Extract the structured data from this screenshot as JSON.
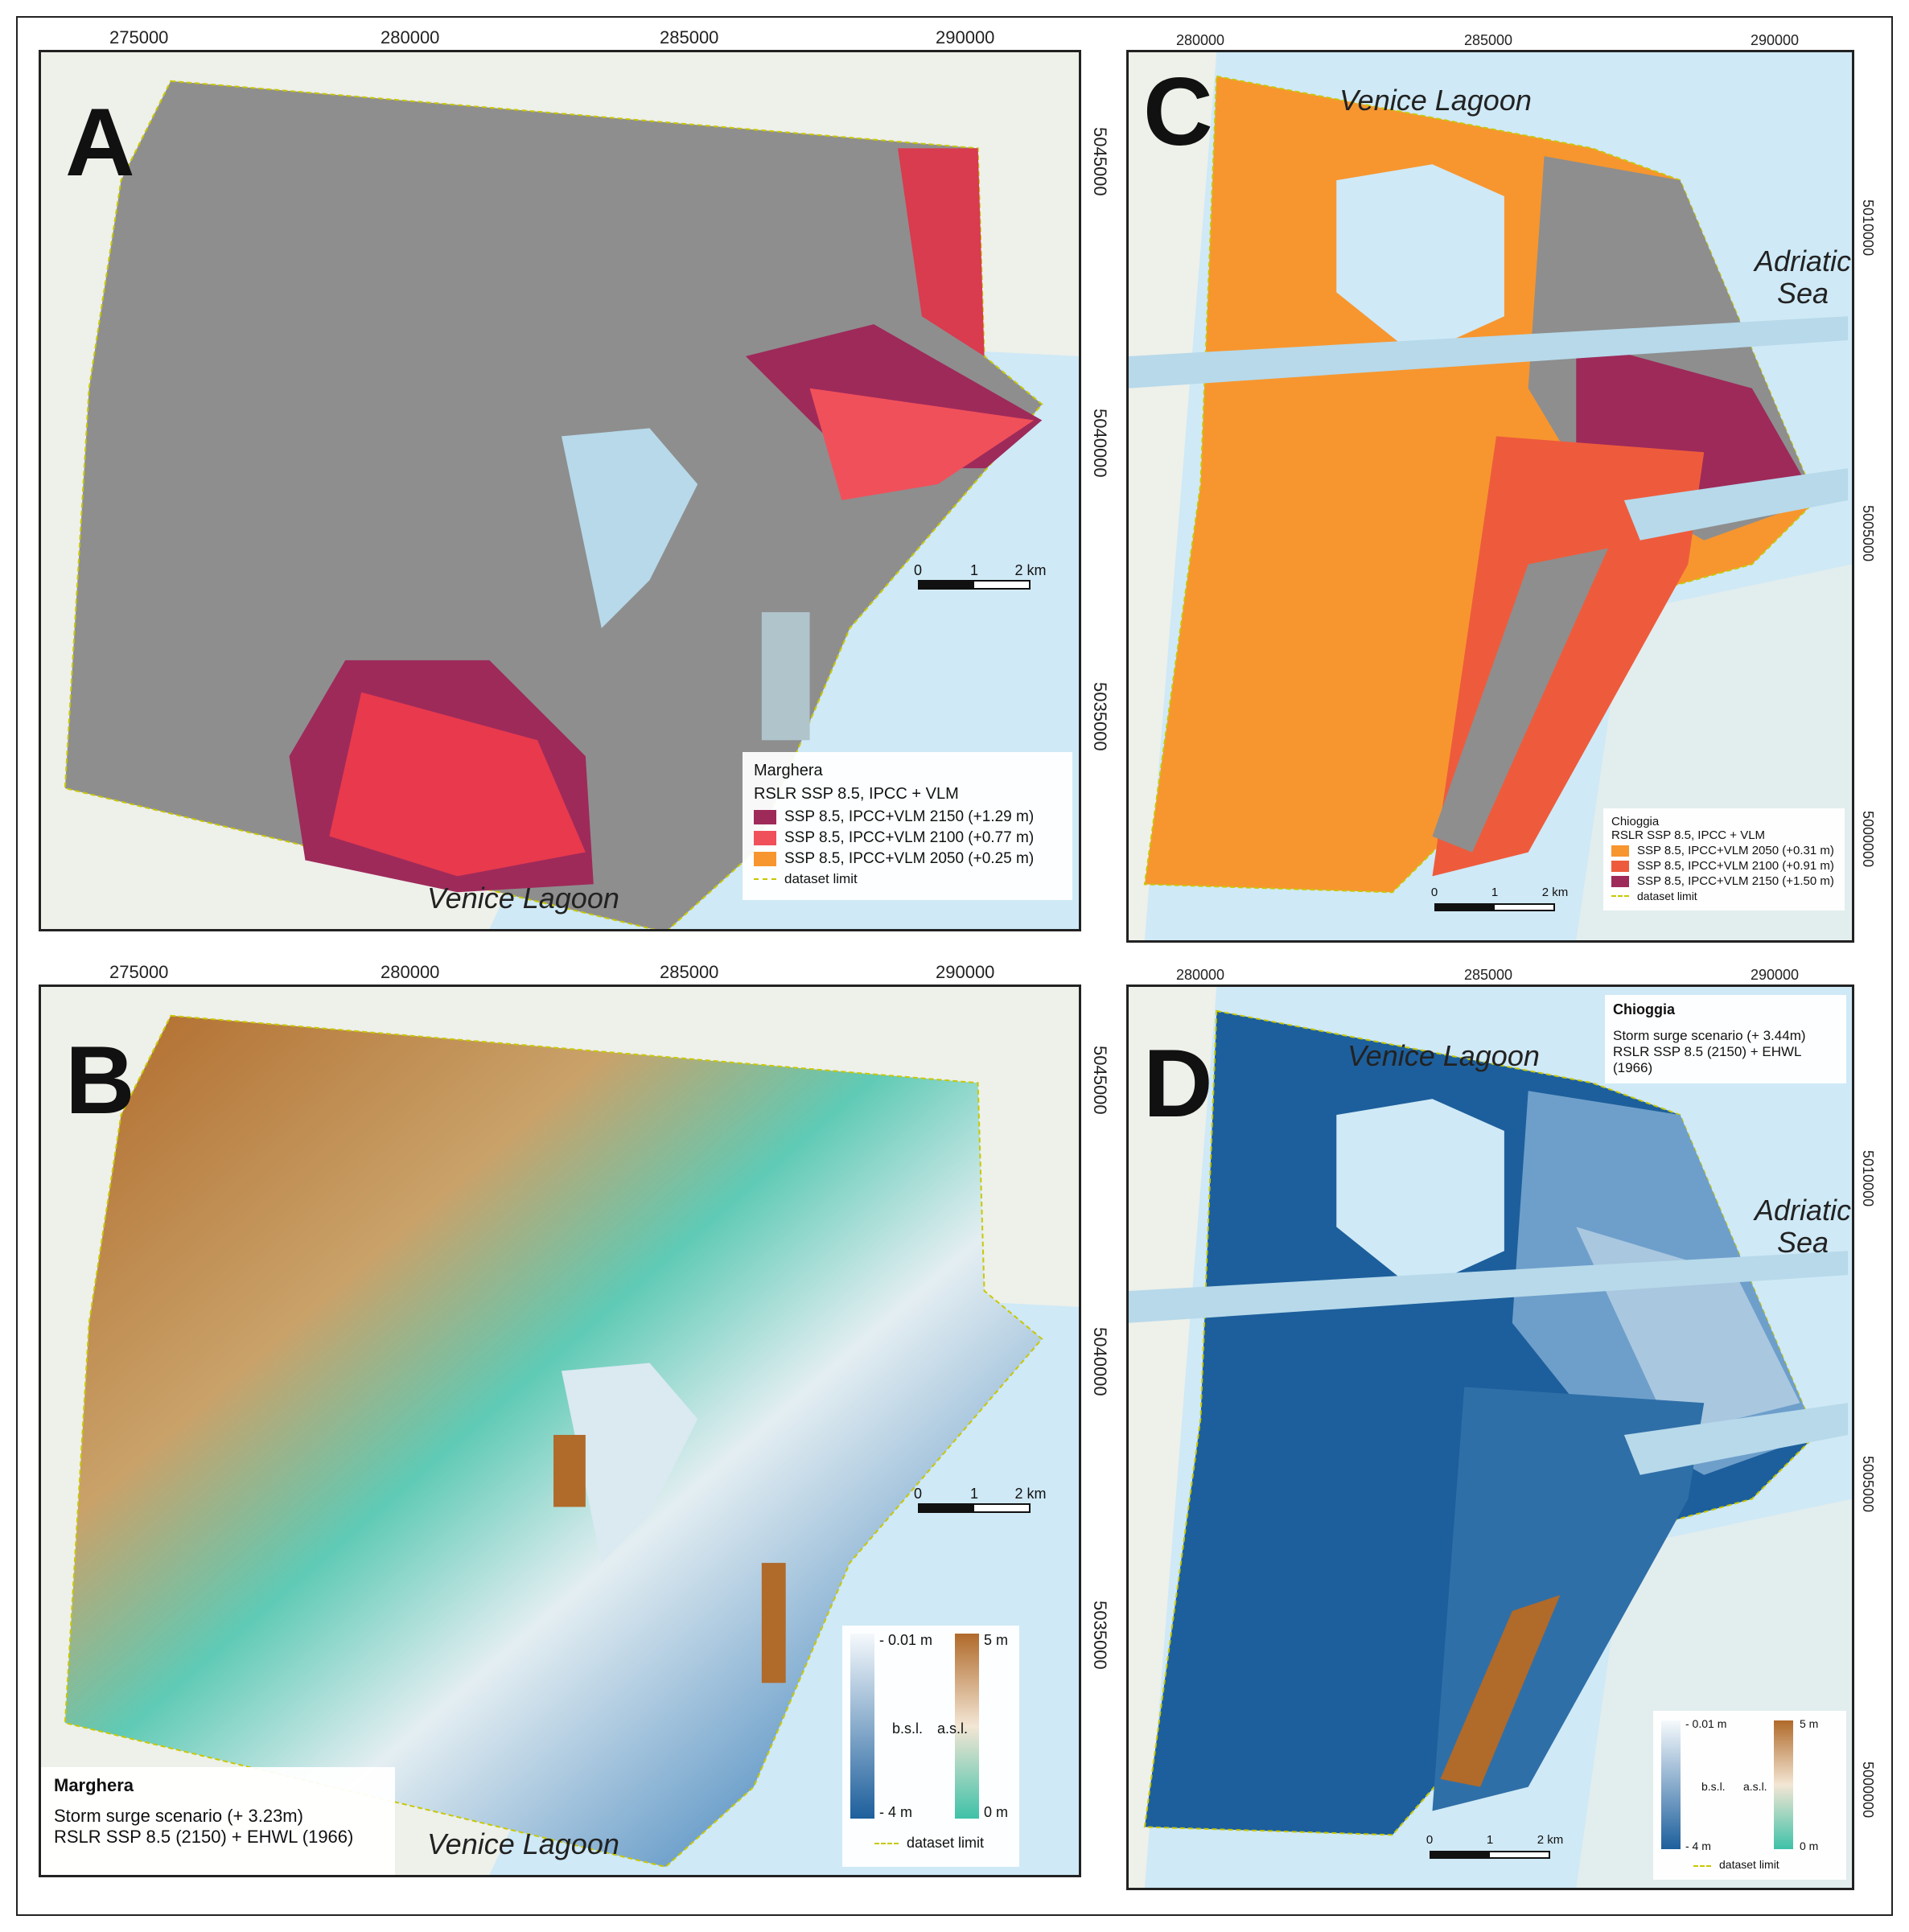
{
  "panels": {
    "A": {
      "letter": "A",
      "top_ticks": [
        "275000",
        "280000",
        "285000",
        "290000"
      ],
      "right_ticks": [
        "5045000",
        "5040000",
        "5035000"
      ],
      "places": {
        "lagoon": "Venice Lagoon"
      },
      "scale": {
        "n0": "0",
        "n1": "1",
        "n2": "2 km"
      },
      "legend": {
        "title": "Marghera",
        "subtitle": "RSLR SSP 8.5, IPCC + VLM",
        "items": [
          {
            "label": "SSP 8.5, IPCC+VLM 2150 (+1.29 m)",
            "color": "#9e2a5a"
          },
          {
            "label": "SSP 8.5, IPCC+VLM 2100 (+0.77 m)",
            "color": "#f0505a"
          },
          {
            "label": "SSP 8.5, IPCC+VLM 2050 (+0.25 m)",
            "color": "#f7962f"
          }
        ],
        "limit_label": "dataset limit"
      }
    },
    "B": {
      "letter": "B",
      "top_ticks": [
        "275000",
        "280000",
        "285000",
        "290000"
      ],
      "right_ticks": [
        "5045000",
        "5040000",
        "5035000"
      ],
      "places": {
        "lagoon": "Venice Lagoon"
      },
      "scale": {
        "n0": "0",
        "n1": "1",
        "n2": "2 km"
      },
      "ramp": {
        "bsl_top": "- 0.01 m",
        "bsl_label": "b.s.l.",
        "bsl_bottom": "- 4 m",
        "asl_top": "5 m",
        "asl_label": "a.s.l.",
        "asl_bottom": "0 m",
        "limit_label": "dataset limit"
      },
      "storm": {
        "title": "Marghera",
        "line1": "Storm surge scenario (+ 3.23m)",
        "line2": "RSLR SSP 8.5 (2150) + EHWL (1966)"
      }
    },
    "C": {
      "letter": "C",
      "top_ticks": [
        "280000",
        "285000",
        "290000"
      ],
      "right_ticks": [
        "5010000",
        "5005000",
        "5000000"
      ],
      "places": {
        "lagoon": "Venice Lagoon",
        "sea": "Adriatic\nSea"
      },
      "scale": {
        "n0": "0",
        "n1": "1",
        "n2": "2 km"
      },
      "legend": {
        "title": "Chioggia",
        "subtitle": "RSLR SSP 8.5, IPCC + VLM",
        "items": [
          {
            "label": "SSP 8.5, IPCC+VLM 2050 (+0.31 m)",
            "color": "#f7962f"
          },
          {
            "label": "SSP 8.5, IPCC+VLM 2100 (+0.91 m)",
            "color": "#ee5b3c"
          },
          {
            "label": "SSP 8.5, IPCC+VLM 2150 (+1.50 m)",
            "color": "#9e2a5a"
          }
        ],
        "limit_label": "dataset limit"
      }
    },
    "D": {
      "letter": "D",
      "top_ticks": [
        "280000",
        "285000",
        "290000"
      ],
      "right_ticks": [
        "5010000",
        "5005000",
        "5000000"
      ],
      "places": {
        "lagoon": "Venice Lagoon",
        "sea": "Adriatic\nSea"
      },
      "scale": {
        "n0": "0",
        "n1": "1",
        "n2": "2 km"
      },
      "ramp": {
        "bsl_top": "- 0.01 m",
        "bsl_label": "b.s.l.",
        "bsl_bottom": "- 4 m",
        "asl_top": "5 m",
        "asl_label": "a.s.l.",
        "asl_bottom": "0 m",
        "limit_label": "dataset limit"
      },
      "storm": {
        "title": "Chioggia",
        "line1": "Storm surge scenario (+ 3.44m)",
        "line2": "RSLR SSP 8.5 (2150) + EHWL (1966)"
      }
    }
  },
  "colors": {
    "water": "#cfe9f6",
    "land_base": "#eef0ea",
    "grey_terrain": "#8e8e8e",
    "flood_2150": "#9e2a5a",
    "flood_2100": "#f0505a",
    "flood_2050": "#f7962f",
    "depth_deep": "#1d5f9c",
    "depth_shallow": "#e9f2f8",
    "elev_high": "#b06a2a",
    "elev_low": "#3fc1a8",
    "dataset_limit": "#c8c800"
  }
}
